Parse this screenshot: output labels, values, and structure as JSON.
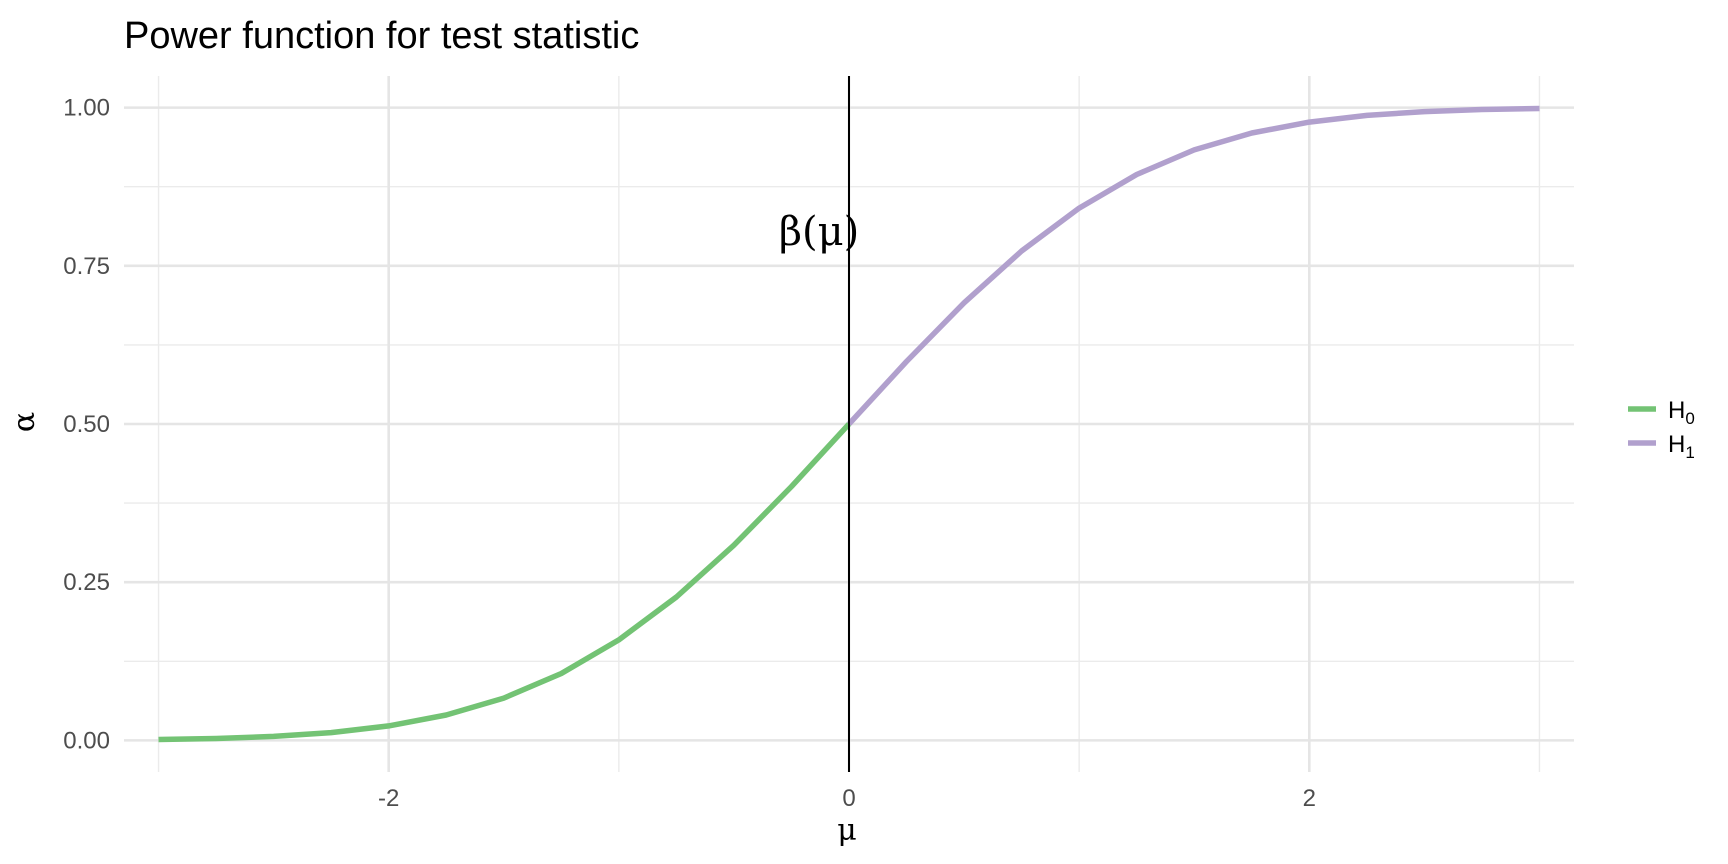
{
  "chart_data": {
    "type": "line",
    "title": "Power function for test statistic",
    "xlabel": "μ",
    "ylabel": "α",
    "xlim": [
      -3.15,
      3.15
    ],
    "ylim": [
      -0.05,
      1.05
    ],
    "x_ticks": [
      -2,
      0,
      2
    ],
    "x_tick_labels": [
      "-2",
      "0",
      "2"
    ],
    "x_minor_ticks": [
      -3,
      -1,
      1,
      3
    ],
    "y_ticks": [
      0,
      0.25,
      0.5,
      0.75,
      1
    ],
    "y_tick_labels": [
      "0.00",
      "0.25",
      "0.50",
      "0.75",
      "1.00"
    ],
    "y_minor_ticks": [
      0.125,
      0.375,
      0.625,
      0.875
    ],
    "grid": true,
    "legend_position": "right",
    "series": [
      {
        "name": "H0",
        "legend_main": "H",
        "legend_sub": "0",
        "color": "#73C374",
        "x": [
          -3.0,
          -2.75,
          -2.5,
          -2.25,
          -2.0,
          -1.75,
          -1.5,
          -1.25,
          -1.0,
          -0.75,
          -0.5,
          -0.25,
          0.0
        ],
        "y": [
          0.0013,
          0.003,
          0.0062,
          0.0122,
          0.0228,
          0.0401,
          0.0668,
          0.1056,
          0.1587,
          0.2266,
          0.3085,
          0.4013,
          0.5
        ]
      },
      {
        "name": "H1",
        "legend_main": "H",
        "legend_sub": "1",
        "color": "#B1A0CD",
        "x": [
          0.0,
          0.25,
          0.5,
          0.75,
          1.0,
          1.25,
          1.5,
          1.75,
          2.0,
          2.25,
          2.5,
          2.75,
          3.0
        ],
        "y": [
          0.5,
          0.5987,
          0.6915,
          0.7734,
          0.8413,
          0.8944,
          0.9332,
          0.9599,
          0.9772,
          0.9878,
          0.9938,
          0.997,
          0.9987
        ]
      }
    ],
    "vline": {
      "x": 0,
      "color": "#000000"
    },
    "annotation": {
      "text": "β(μ)",
      "x": -0.13,
      "y": 0.805
    }
  }
}
